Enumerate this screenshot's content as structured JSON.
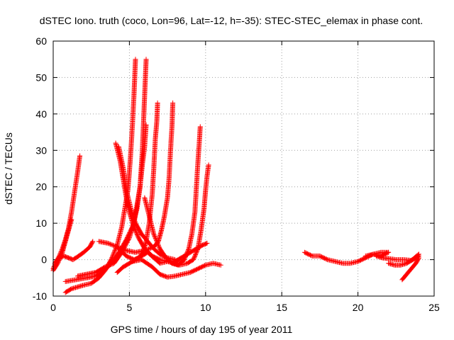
{
  "chart_data": {
    "type": "scatter",
    "title": "dSTEC Iono. truth (coco, Lon=96, Lat=-12, h=-35): STEC-STEC_elemax in phase cont.",
    "xlabel": "GPS time / hours of day 195 of year 2011",
    "ylabel": "dSTEC  / TECUs",
    "xlim": [
      0,
      25
    ],
    "ylim": [
      -10,
      60
    ],
    "x_ticks": [
      0,
      5,
      10,
      15,
      20,
      25
    ],
    "y_ticks": [
      -10,
      0,
      10,
      20,
      30,
      40,
      50,
      60
    ],
    "grid": true,
    "marker": "+",
    "marker_color": "#ff0000",
    "series": [
      {
        "points": [
          [
            0.0,
            -2.5
          ],
          [
            0.2,
            -0.5
          ],
          [
            0.4,
            1.0
          ],
          [
            0.6,
            3.0
          ],
          [
            0.8,
            5.5
          ],
          [
            1.0,
            8.5
          ],
          [
            1.2,
            13.0
          ],
          [
            1.4,
            18.5
          ],
          [
            1.6,
            24.0
          ],
          [
            1.75,
            28.5
          ]
        ]
      },
      {
        "points": [
          [
            0.0,
            -3.0
          ],
          [
            0.3,
            -1.0
          ],
          [
            0.6,
            2.0
          ],
          [
            0.8,
            5.0
          ],
          [
            1.0,
            8.0
          ],
          [
            1.2,
            11.0
          ]
        ]
      },
      {
        "points": [
          [
            0.1,
            -1.0
          ],
          [
            0.4,
            0.5
          ],
          [
            0.7,
            1.0
          ],
          [
            1.0,
            0.5
          ],
          [
            1.3,
            0.0
          ],
          [
            1.6,
            0.8
          ],
          [
            2.0,
            2.0
          ],
          [
            2.4,
            3.5
          ],
          [
            2.6,
            5.0
          ]
        ]
      },
      {
        "points": [
          [
            0.8,
            -9.0
          ],
          [
            1.2,
            -8.0
          ],
          [
            1.6,
            -7.5
          ],
          [
            2.0,
            -7.0
          ],
          [
            2.5,
            -6.5
          ],
          [
            3.0,
            -5.0
          ],
          [
            3.4,
            -3.0
          ],
          [
            3.8,
            0.0
          ],
          [
            4.2,
            4.0
          ],
          [
            4.5,
            9.0
          ],
          [
            4.7,
            14.0
          ],
          [
            4.9,
            19.0
          ],
          [
            5.0,
            24.0
          ],
          [
            5.1,
            30.0
          ],
          [
            5.2,
            37.0
          ],
          [
            5.3,
            45.0
          ],
          [
            5.35,
            50.0
          ],
          [
            5.4,
            55.0
          ]
        ]
      },
      {
        "points": [
          [
            1.6,
            -4.5
          ],
          [
            2.2,
            -4.0
          ],
          [
            2.8,
            -3.5
          ],
          [
            3.4,
            -2.0
          ],
          [
            4.0,
            -1.0
          ],
          [
            4.5,
            2.0
          ],
          [
            5.0,
            6.0
          ],
          [
            5.3,
            10.0
          ],
          [
            5.5,
            15.0
          ],
          [
            5.7,
            20.0
          ],
          [
            5.85,
            26.0
          ],
          [
            6.0,
            31.0
          ],
          [
            6.1,
            37.0
          ]
        ]
      },
      {
        "points": [
          [
            0.8,
            -6.0
          ],
          [
            1.5,
            -5.5
          ],
          [
            2.2,
            -5.0
          ],
          [
            2.8,
            -4.5
          ],
          [
            3.2,
            -3.5
          ],
          [
            3.6,
            -2.0
          ],
          [
            4.0,
            0.0
          ],
          [
            4.4,
            2.5
          ],
          [
            4.8,
            5.5
          ],
          [
            5.2,
            9.0
          ],
          [
            5.5,
            14.0
          ],
          [
            5.7,
            20.0
          ],
          [
            5.85,
            30.0
          ],
          [
            5.95,
            40.0
          ],
          [
            6.0,
            45.0
          ],
          [
            6.05,
            50.0
          ],
          [
            6.1,
            55.0
          ]
        ]
      },
      {
        "points": [
          [
            4.1,
            32.0
          ],
          [
            4.4,
            27.0
          ],
          [
            4.6,
            22.0
          ],
          [
            4.8,
            17.0
          ],
          [
            5.0,
            13.0
          ],
          [
            5.3,
            9.0
          ],
          [
            5.6,
            6.0
          ],
          [
            6.0,
            3.0
          ],
          [
            6.5,
            1.0
          ],
          [
            7.0,
            0.0
          ],
          [
            7.5,
            -0.5
          ],
          [
            8.0,
            -0.5
          ],
          [
            8.3,
            0.0
          ]
        ]
      },
      {
        "points": [
          [
            4.3,
            31.0
          ],
          [
            4.6,
            25.0
          ],
          [
            4.8,
            19.0
          ],
          [
            5.1,
            14.0
          ],
          [
            5.4,
            10.0
          ],
          [
            5.8,
            7.0
          ],
          [
            6.2,
            5.0
          ],
          [
            6.6,
            3.0
          ],
          [
            7.0,
            1.5
          ],
          [
            7.5,
            0.5
          ],
          [
            8.0,
            0.0
          ]
        ]
      },
      {
        "points": [
          [
            3.0,
            5.0
          ],
          [
            3.6,
            4.5
          ],
          [
            4.2,
            3.5
          ],
          [
            4.8,
            2.5
          ],
          [
            5.4,
            2.0
          ],
          [
            6.0,
            2.5
          ],
          [
            6.6,
            3.5
          ],
          [
            6.9,
            5.0
          ],
          [
            7.1,
            8.0
          ],
          [
            7.3,
            12.0
          ],
          [
            7.5,
            17.0
          ],
          [
            7.6,
            22.0
          ],
          [
            7.7,
            30.0
          ],
          [
            7.8,
            37.0
          ],
          [
            7.85,
            43.0
          ]
        ]
      },
      {
        "points": [
          [
            4.3,
            3.0
          ],
          [
            4.8,
            1.0
          ],
          [
            5.3,
            0.0
          ],
          [
            5.6,
            0.5
          ],
          [
            5.9,
            2.0
          ],
          [
            6.1,
            5.0
          ],
          [
            6.3,
            10.0
          ],
          [
            6.5,
            18.0
          ],
          [
            6.6,
            25.0
          ],
          [
            6.7,
            33.0
          ],
          [
            6.8,
            38.0
          ],
          [
            6.85,
            43.0
          ]
        ]
      },
      {
        "points": [
          [
            4.2,
            -3.5
          ],
          [
            4.6,
            -2.0
          ],
          [
            5.0,
            -1.0
          ],
          [
            5.4,
            0.0
          ],
          [
            5.8,
            1.0
          ],
          [
            6.2,
            2.0
          ],
          [
            6.6,
            0.5
          ],
          [
            7.0,
            -1.0
          ],
          [
            7.5,
            -0.5
          ],
          [
            7.9,
            -1.0
          ],
          [
            8.3,
            -1.5
          ],
          [
            8.8,
            -1.0
          ],
          [
            9.2,
            0.0
          ],
          [
            9.5,
            3.0
          ],
          [
            9.7,
            8.0
          ],
          [
            9.9,
            14.0
          ],
          [
            10.0,
            19.0
          ],
          [
            10.1,
            23.0
          ],
          [
            10.2,
            26.0
          ]
        ]
      },
      {
        "points": [
          [
            6.0,
            17.0
          ],
          [
            6.3,
            12.0
          ],
          [
            6.6,
            7.0
          ],
          [
            7.0,
            3.0
          ],
          [
            7.4,
            0.5
          ],
          [
            7.8,
            -1.0
          ],
          [
            8.2,
            -1.5
          ],
          [
            8.6,
            0.0
          ],
          [
            8.9,
            3.0
          ],
          [
            9.1,
            7.0
          ],
          [
            9.3,
            13.0
          ],
          [
            9.4,
            20.0
          ],
          [
            9.5,
            27.0
          ],
          [
            9.6,
            33.0
          ],
          [
            9.65,
            36.5
          ]
        ]
      },
      {
        "points": [
          [
            5.2,
            -0.5
          ],
          [
            5.8,
            0.0
          ],
          [
            6.5,
            -2.0
          ],
          [
            7.0,
            -4.0
          ],
          [
            7.5,
            -4.8
          ],
          [
            8.0,
            -4.5
          ],
          [
            8.5,
            -4.0
          ],
          [
            9.0,
            -3.5
          ],
          [
            9.5,
            -2.5
          ],
          [
            10.0,
            -1.5
          ],
          [
            10.5,
            -1.0
          ],
          [
            11.0,
            -1.5
          ]
        ]
      },
      {
        "points": [
          [
            7.8,
            -1.0
          ],
          [
            8.2,
            0.0
          ],
          [
            8.6,
            1.0
          ],
          [
            9.0,
            2.0
          ],
          [
            9.4,
            3.0
          ],
          [
            9.8,
            4.0
          ],
          [
            10.1,
            4.5
          ]
        ]
      },
      {
        "points": [
          [
            16.5,
            2.0
          ],
          [
            17.0,
            1.0
          ],
          [
            17.5,
            1.0
          ],
          [
            18.0,
            0.0
          ],
          [
            18.5,
            -0.5
          ],
          [
            19.0,
            -1.0
          ],
          [
            19.5,
            -1.0
          ],
          [
            20.0,
            -0.5
          ],
          [
            20.5,
            0.5
          ],
          [
            21.0,
            1.5
          ],
          [
            21.5,
            1.0
          ],
          [
            22.0,
            2.0
          ]
        ]
      },
      {
        "points": [
          [
            20.5,
            1.0
          ],
          [
            21.0,
            1.5
          ],
          [
            21.5,
            2.0
          ],
          [
            22.0,
            2.0
          ]
        ]
      },
      {
        "points": [
          [
            21.2,
            1.0
          ],
          [
            21.6,
            0.5
          ],
          [
            22.0,
            0.3
          ],
          [
            22.5,
            0.0
          ],
          [
            23.0,
            0.0
          ],
          [
            23.5,
            -0.2
          ],
          [
            24.0,
            1.5
          ]
        ]
      },
      {
        "points": [
          [
            22.0,
            -1.0
          ],
          [
            22.4,
            -1.5
          ],
          [
            22.8,
            -1.5
          ],
          [
            23.2,
            -1.0
          ],
          [
            23.6,
            0.0
          ],
          [
            24.0,
            1.0
          ]
        ]
      },
      {
        "points": [
          [
            22.9,
            -5.5
          ],
          [
            23.2,
            -4.0
          ],
          [
            23.5,
            -2.5
          ],
          [
            23.8,
            -1.0
          ],
          [
            24.0,
            0.5
          ]
        ]
      }
    ]
  }
}
